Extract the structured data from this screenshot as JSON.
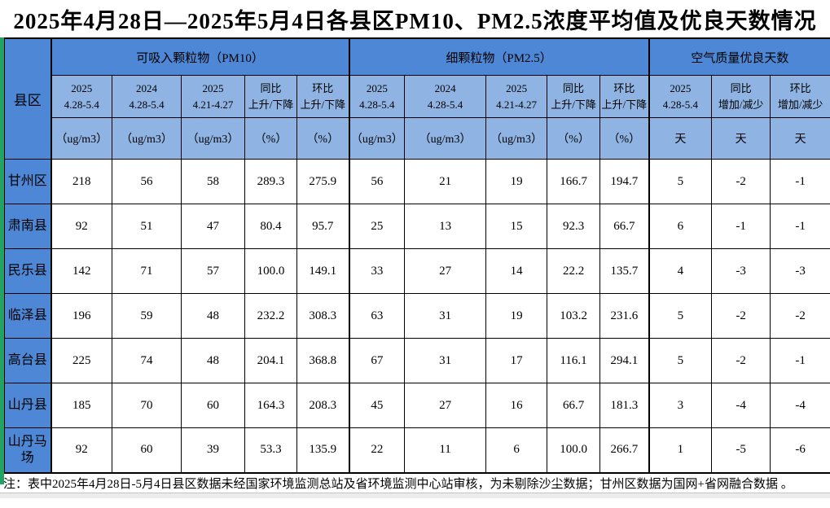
{
  "title": "2025年4月28日—2025年5月4日各县区PM10、PM2.5浓度平均值及优良天数情况",
  "table": {
    "corner_header": "县区",
    "groups": [
      {
        "label": "可吸入颗粒物（PM10）",
        "span": 5
      },
      {
        "label": "细颗粒物（PM2.5）",
        "span": 5
      },
      {
        "label": "空气质量优良天数",
        "span": 3
      }
    ],
    "columns": [
      {
        "period": "2025\n4.28-5.4",
        "unit": "（ug/m3）"
      },
      {
        "period": "2024\n4.28-5.4",
        "unit": "（ug/m3）"
      },
      {
        "period": "2025\n4.21-4.27",
        "unit": "（ug/m3）"
      },
      {
        "period": "同比\n上升/下降",
        "unit": "（%）"
      },
      {
        "period": "环比\n上升/下降",
        "unit": "（%）"
      },
      {
        "period": "2025\n4.28-5.4",
        "unit": "（ug/m3）"
      },
      {
        "period": "2024\n4.28-5.4",
        "unit": "（ug/m3）"
      },
      {
        "period": "2025\n4.21-4.27",
        "unit": "（ug/m3）"
      },
      {
        "period": "同比\n上升/下降",
        "unit": "（%）"
      },
      {
        "period": "环比\n上升/下降",
        "unit": "（%）"
      },
      {
        "period": "2025\n4.28-5.4",
        "unit": "天"
      },
      {
        "period": "同比\n增加/减少",
        "unit": "天"
      },
      {
        "period": "环比\n增加/减少",
        "unit": "天"
      }
    ],
    "rows": [
      {
        "name": "甘州区",
        "values": [
          "218",
          "56",
          "58",
          "289.3",
          "275.9",
          "56",
          "21",
          "19",
          "166.7",
          "194.7",
          "5",
          "-2",
          "-1"
        ]
      },
      {
        "name": "肃南县",
        "values": [
          "92",
          "51",
          "47",
          "80.4",
          "95.7",
          "25",
          "13",
          "15",
          "92.3",
          "66.7",
          "6",
          "-1",
          "-1"
        ]
      },
      {
        "name": "民乐县",
        "values": [
          "142",
          "71",
          "57",
          "100.0",
          "149.1",
          "33",
          "27",
          "14",
          "22.2",
          "135.7",
          "4",
          "-3",
          "-3"
        ]
      },
      {
        "name": "临泽县",
        "values": [
          "196",
          "59",
          "48",
          "232.2",
          "308.3",
          "63",
          "31",
          "19",
          "103.2",
          "231.6",
          "5",
          "-2",
          "-2"
        ]
      },
      {
        "name": "高台县",
        "values": [
          "225",
          "74",
          "48",
          "204.1",
          "368.8",
          "67",
          "31",
          "17",
          "116.1",
          "294.1",
          "5",
          "-2",
          "-1"
        ]
      },
      {
        "name": "山丹县",
        "values": [
          "185",
          "70",
          "60",
          "164.3",
          "208.3",
          "45",
          "27",
          "16",
          "66.7",
          "181.3",
          "3",
          "-4",
          "-4"
        ]
      },
      {
        "name": "山丹马场",
        "values": [
          "92",
          "60",
          "39",
          "53.3",
          "135.9",
          "22",
          "11",
          "6",
          "100.0",
          "266.7",
          "1",
          "-5",
          "-6"
        ]
      }
    ]
  },
  "note": "注：表中2025年4月28日-5月4日县区数据未经国家环境监测总站及省环境监测中心站审核，为未剔除沙尘数据；甘州区数据为国网+省网融合数据 。",
  "colors": {
    "header_blue": "#4e87d5",
    "subheader_blue": "#8fb4e3",
    "accent_green": "#1fa463",
    "bottom_strip": "#ececec"
  }
}
